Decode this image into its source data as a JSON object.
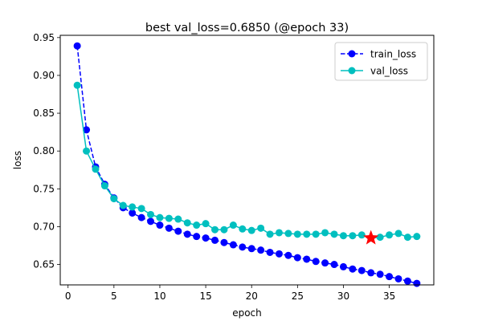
{
  "chart_data": {
    "type": "line",
    "title": "best val_loss=0.6850 (@epoch 33)",
    "xlabel": "epoch",
    "ylabel": "loss",
    "xlim": [
      -0.85,
      39.85
    ],
    "ylim": [
      0.623,
      0.953
    ],
    "xticks": [
      0,
      5,
      10,
      15,
      20,
      25,
      30,
      35
    ],
    "yticks": [
      0.65,
      0.7,
      0.75,
      0.8,
      0.85,
      0.9,
      0.95
    ],
    "ytick_labels": [
      "0.65",
      "0.70",
      "0.75",
      "0.80",
      "0.85",
      "0.90",
      "0.95"
    ],
    "grid": false,
    "legend_position": "top-right",
    "x": [
      1,
      2,
      3,
      4,
      5,
      6,
      7,
      8,
      9,
      10,
      11,
      12,
      13,
      14,
      15,
      16,
      17,
      18,
      19,
      20,
      21,
      22,
      23,
      24,
      25,
      26,
      27,
      28,
      29,
      30,
      31,
      32,
      33,
      34,
      35,
      36,
      37,
      38
    ],
    "series": [
      {
        "name": "train_loss",
        "color": "#0000ff",
        "style": "dashed",
        "marker": "circle",
        "values": [
          0.939,
          0.828,
          0.779,
          0.756,
          0.738,
          0.725,
          0.718,
          0.712,
          0.707,
          0.702,
          0.698,
          0.694,
          0.69,
          0.687,
          0.685,
          0.682,
          0.679,
          0.676,
          0.673,
          0.671,
          0.669,
          0.666,
          0.664,
          0.662,
          0.659,
          0.657,
          0.654,
          0.652,
          0.65,
          0.647,
          0.644,
          0.642,
          0.639,
          0.637,
          0.634,
          0.631,
          0.628,
          0.625
        ]
      },
      {
        "name": "val_loss",
        "color": "#00bfbf",
        "style": "solid",
        "marker": "circle",
        "values": [
          0.887,
          0.8,
          0.776,
          0.754,
          0.737,
          0.728,
          0.726,
          0.724,
          0.716,
          0.712,
          0.711,
          0.71,
          0.705,
          0.702,
          0.704,
          0.696,
          0.696,
          0.702,
          0.697,
          0.695,
          0.698,
          0.69,
          0.692,
          0.691,
          0.69,
          0.69,
          0.69,
          0.692,
          0.69,
          0.688,
          0.688,
          0.689,
          0.685,
          0.686,
          0.689,
          0.691,
          0.686,
          0.687
        ]
      }
    ],
    "best_marker": {
      "x": 33,
      "y": 0.685,
      "color": "#ff0000",
      "marker": "star"
    }
  }
}
